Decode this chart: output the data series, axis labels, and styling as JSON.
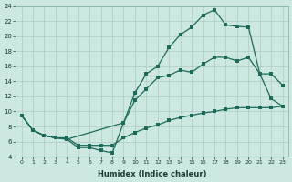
{
  "xlabel": "Humidex (Indice chaleur)",
  "bg_color": "#cce8e0",
  "grid_color": "#aaccc4",
  "line_color": "#1a6b5a",
  "xmin": -0.5,
  "xmax": 23.5,
  "ymin": 4,
  "ymax": 24,
  "yticks": [
    4,
    6,
    8,
    10,
    12,
    14,
    16,
    18,
    20,
    22,
    24
  ],
  "xticks": [
    0,
    1,
    2,
    3,
    4,
    5,
    6,
    7,
    8,
    9,
    10,
    11,
    12,
    13,
    14,
    15,
    16,
    17,
    18,
    19,
    20,
    21,
    22,
    23
  ],
  "line1_x": [
    0,
    1,
    2,
    3,
    4,
    5,
    6,
    7,
    8,
    9,
    10,
    11,
    12,
    13,
    14,
    15,
    16,
    17,
    18,
    19,
    20,
    21,
    22,
    23
  ],
  "line1_y": [
    9.5,
    7.5,
    6.8,
    6.5,
    6.3,
    5.2,
    5.2,
    4.8,
    4.5,
    8.5,
    12.5,
    15.0,
    16.0,
    18.5,
    20.2,
    21.2,
    22.8,
    23.5,
    21.5,
    21.3,
    21.2,
    15.0,
    15.0,
    13.5
  ],
  "line2_x": [
    0,
    1,
    2,
    3,
    4,
    9,
    10,
    11,
    12,
    13,
    14,
    15,
    16,
    17,
    18,
    19,
    20,
    21,
    22,
    23
  ],
  "line2_y": [
    9.5,
    7.5,
    6.8,
    6.5,
    6.3,
    8.5,
    11.5,
    13.0,
    14.5,
    14.8,
    15.5,
    15.2,
    16.3,
    17.2,
    17.2,
    16.7,
    17.2,
    15.0,
    11.7,
    10.7
  ],
  "line3_x": [
    0,
    1,
    2,
    3,
    4,
    5,
    6,
    7,
    8,
    9,
    10,
    11,
    12,
    13,
    14,
    15,
    16,
    17,
    18,
    19,
    20,
    21,
    22,
    23
  ],
  "line3_y": [
    9.5,
    7.5,
    6.8,
    6.5,
    6.5,
    5.5,
    5.5,
    5.5,
    5.5,
    6.5,
    7.2,
    7.8,
    8.2,
    8.8,
    9.2,
    9.5,
    9.8,
    10.0,
    10.3,
    10.5,
    10.5,
    10.5,
    10.5,
    10.7
  ]
}
